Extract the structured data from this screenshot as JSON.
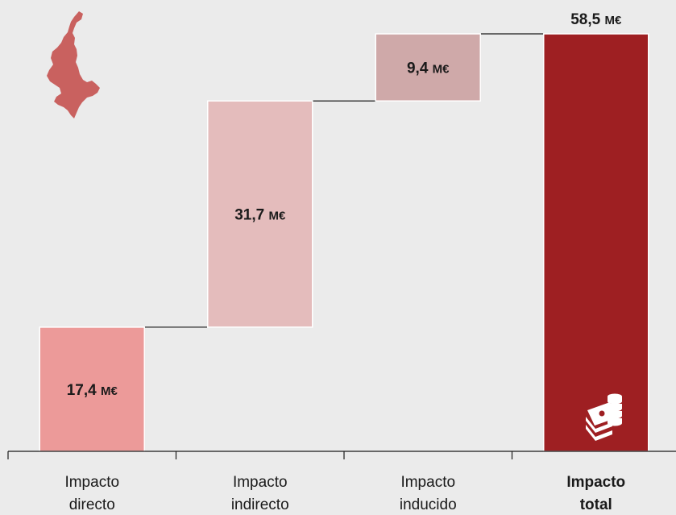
{
  "chart_data": {
    "type": "bar",
    "subtype": "waterfall",
    "categories": [
      {
        "line1": "Impacto",
        "line2": "directo",
        "bold": false
      },
      {
        "line1": "Impacto",
        "line2": "indirecto",
        "bold": false
      },
      {
        "line1": "Impacto",
        "line2": "inducido",
        "bold": false
      },
      {
        "line1": "Impacto",
        "line2": "total",
        "bold": true
      }
    ],
    "values": [
      17.4,
      31.7,
      9.4,
      58.5
    ],
    "value_labels": [
      "17,4",
      "31,7",
      "9,4",
      "58,5"
    ],
    "unit": "M€",
    "colors": [
      "#ec9a99",
      "#e4bcbc",
      "#cfa9a9",
      "#9e1f22"
    ],
    "ylim": [
      0,
      58.5
    ],
    "grid": false,
    "legend": "none",
    "icons": [
      "valencia-map-icon",
      "money-stack-icon"
    ]
  }
}
